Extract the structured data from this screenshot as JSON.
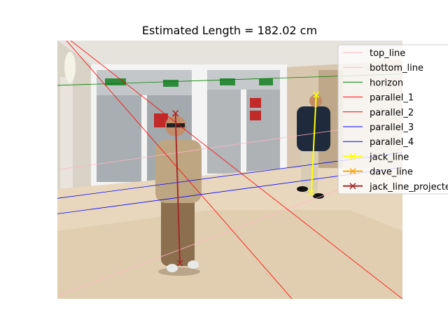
{
  "chart_data": {
    "type": "line",
    "title": "Estimated Length = 182.02 cm",
    "image_extent": {
      "x": [
        0,
        1000
      ],
      "y": [
        0,
        750
      ]
    },
    "series": [
      {
        "name": "top_line",
        "color": "#ffb6c1",
        "marker": "none",
        "x": [
          0,
          1000
        ],
        "y": [
          375,
          233
        ]
      },
      {
        "name": "bottom_line",
        "color": "#ffb6c1",
        "marker": "none",
        "x": [
          0,
          1000
        ],
        "y": [
          741,
          363
        ]
      },
      {
        "name": "horizon",
        "color": "#008000",
        "marker": "none",
        "x": [
          0,
          1000
        ],
        "y": [
          130,
          97
        ]
      },
      {
        "name": "parallel_1",
        "color": "#ff0000",
        "marker": "none",
        "x": [
          0,
          1000
        ],
        "y": [
          -30,
          750
        ]
      },
      {
        "name": "parallel_2",
        "color": "#ff0000",
        "marker": "none",
        "x": [
          0,
          680
        ],
        "y": [
          -30,
          750
        ]
      },
      {
        "name": "parallel_3",
        "color": "#0000ff",
        "marker": "none",
        "x": [
          0,
          1000
        ],
        "y": [
          458,
          325
        ]
      },
      {
        "name": "parallel_4",
        "color": "#0000ff",
        "marker": "none",
        "x": [
          0,
          1000
        ],
        "y": [
          503,
          368
        ]
      },
      {
        "name": "jack_line",
        "color": "#ffff00",
        "marker": "x",
        "x": [
          750,
          736
        ],
        "y": [
          157,
          441
        ]
      },
      {
        "name": "dave_line",
        "color": "#ffa500",
        "marker": "x",
        "x": [],
        "y": []
      },
      {
        "name": "jack_line_projected",
        "color": "#a52a2a",
        "marker": "x",
        "x": [
          342,
          355
        ],
        "y": [
          211,
          646
        ]
      }
    ],
    "legend": {
      "placement": "top-right",
      "entries": [
        "top_line",
        "bottom_line",
        "horizon",
        "parallel_1",
        "parallel_2",
        "parallel_3",
        "parallel_4",
        "jack_line",
        "dave_line",
        "jack_line_projected"
      ]
    }
  }
}
